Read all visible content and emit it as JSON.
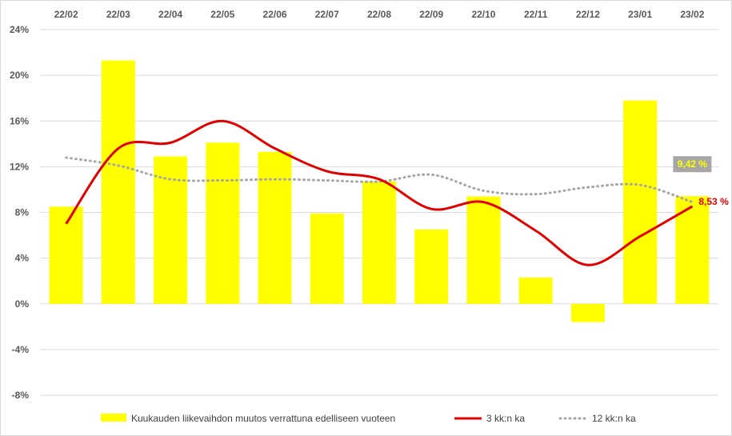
{
  "chart_data": {
    "type": "bar",
    "categories": [
      "22/02",
      "22/03",
      "22/04",
      "22/05",
      "22/06",
      "22/07",
      "22/08",
      "22/09",
      "22/10",
      "22/11",
      "22/12",
      "23/01",
      "23/02"
    ],
    "ylim": [
      -8,
      24
    ],
    "yticks": [
      "24%",
      "20%",
      "16%",
      "12%",
      "8%",
      "4%",
      "0%",
      "-4%",
      "-8%"
    ],
    "grid": true,
    "legend_position": "bottom",
    "series": [
      {
        "name": "Kuukauden liikevaihdon muutos verrattuna edelliseen vuoteen",
        "kind": "bar",
        "color": "#ffff00",
        "values": [
          8.5,
          21.3,
          12.9,
          14.1,
          13.3,
          7.9,
          10.7,
          6.5,
          9.4,
          2.3,
          -1.6,
          17.8,
          9.42
        ]
      },
      {
        "name": "3 kk:n ka",
        "kind": "line",
        "color": "#e00000",
        "values": [
          7.0,
          13.6,
          14.1,
          16.0,
          13.6,
          11.6,
          10.9,
          8.3,
          8.9,
          6.4,
          3.4,
          5.9,
          8.53
        ]
      },
      {
        "name": "12 kk:n ka",
        "kind": "dotted-line",
        "color": "#a6a6a6",
        "values": [
          12.8,
          12.1,
          10.9,
          10.8,
          10.9,
          10.8,
          10.7,
          11.3,
          9.9,
          9.6,
          10.2,
          10.4,
          8.9
        ]
      }
    ],
    "annotations": [
      {
        "text": "9,42 %",
        "series": 0,
        "index": 12,
        "box_color": "#a6a6a6",
        "text_color": "#ffff00"
      },
      {
        "text": "8,53 %",
        "series": 1,
        "index": 12,
        "text_color": "#e00000"
      }
    ]
  }
}
